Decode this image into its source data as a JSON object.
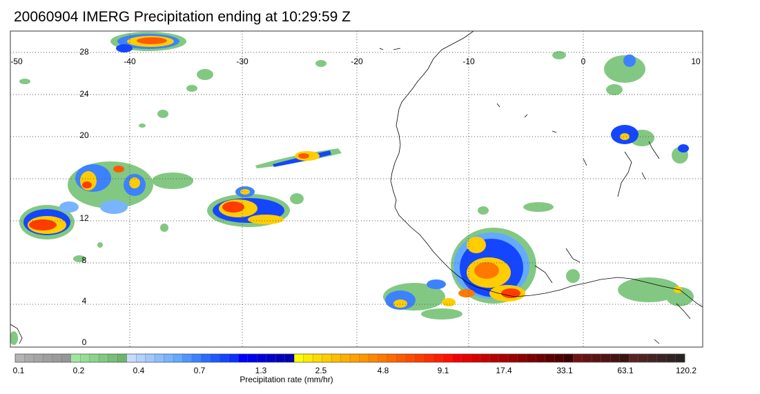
{
  "title": "20060904 IMERG Precipitation ending at 10:29:59 Z",
  "map": {
    "lon_range": [
      -50,
      10
    ],
    "lat_range": [
      -1,
      30
    ],
    "lon_ticks": [
      "-50",
      "-40",
      "-30",
      "-20",
      "-10",
      "0",
      "10"
    ],
    "lat_ticks": [
      "28",
      "24",
      "20",
      "12",
      "8",
      "4",
      "0"
    ],
    "grid": "dotted"
  },
  "colorbar": {
    "label": "Precipitation rate (mm/hr)",
    "tick_labels": [
      "0.1",
      "0.2",
      "0.4",
      "0.7",
      "1.3",
      "2.5",
      "4.8",
      "9.1",
      "17.4",
      "33.1",
      "63.1",
      "120.2"
    ],
    "colors": [
      "#b4b4b4",
      "#aaaaaa",
      "#a5a5a5",
      "#a0a0a0",
      "#9b9b9b",
      "#969696",
      "#a0e6a0",
      "#96dc96",
      "#8cd28c",
      "#82c882",
      "#78be78",
      "#6eb46e",
      "#c8dcff",
      "#b4d2ff",
      "#a0c8ff",
      "#8cbeff",
      "#78b4ff",
      "#64aaff",
      "#5096ff",
      "#3c82ff",
      "#286eff",
      "#1e5aff",
      "#1446ff",
      "#0a32ff",
      "#0000ff",
      "#0000eb",
      "#0000dc",
      "#0000cd",
      "#0000be",
      "#0000af",
      "#ffff00",
      "#ffeb00",
      "#ffdc00",
      "#ffcd00",
      "#ffbe00",
      "#ffaf00",
      "#ffa000",
      "#ff9600",
      "#ff8700",
      "#ff7800",
      "#ff6900",
      "#ff5a00",
      "#ff4b00",
      "#ff3c00",
      "#ff2d00",
      "#ff1e00",
      "#ff0f00",
      "#f50000",
      "#e60000",
      "#d70000",
      "#c80000",
      "#b90000",
      "#aa0000",
      "#9b0000",
      "#8c0000",
      "#7d0000",
      "#6e0000",
      "#5f0000",
      "#500000",
      "#410000",
      "#6e1414",
      "#641414",
      "#5a1414",
      "#501414",
      "#461414",
      "#3c1414",
      "#5a2323",
      "#502323",
      "#462323",
      "#3c2323",
      "#322323",
      "#282323"
    ]
  }
}
